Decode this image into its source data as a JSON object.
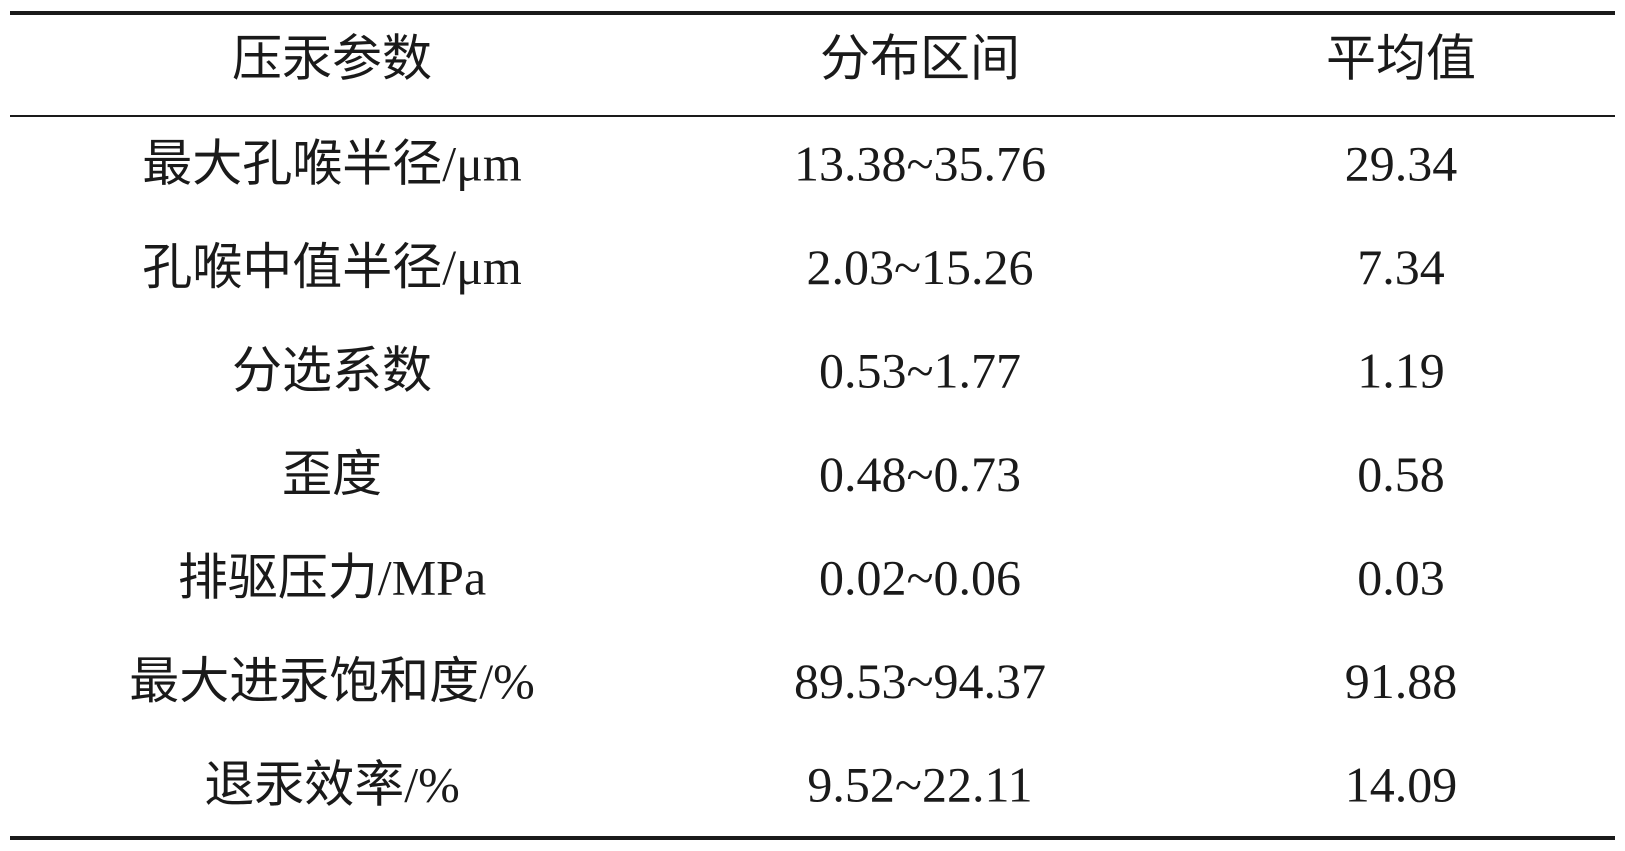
{
  "table": {
    "header": [
      "压汞参数",
      "分布区间",
      "平均值"
    ],
    "rows": [
      [
        "最大孔喉半径/μm",
        "13.38~35.76",
        29.34
      ],
      [
        "孔喉中值半径/μm",
        "2.03~15.26",
        7.34
      ],
      [
        "分选系数",
        "0.53~1.77",
        1.19
      ],
      [
        "歪度",
        "0.48~0.73",
        0.58
      ],
      [
        "排驱压力/MPa",
        "0.02~0.06",
        0.03
      ],
      [
        "最大进汞饱和度/%",
        "89.53~94.37",
        91.88
      ],
      [
        "退汞效率/%",
        "9.52~22.11",
        14.09
      ]
    ]
  }
}
